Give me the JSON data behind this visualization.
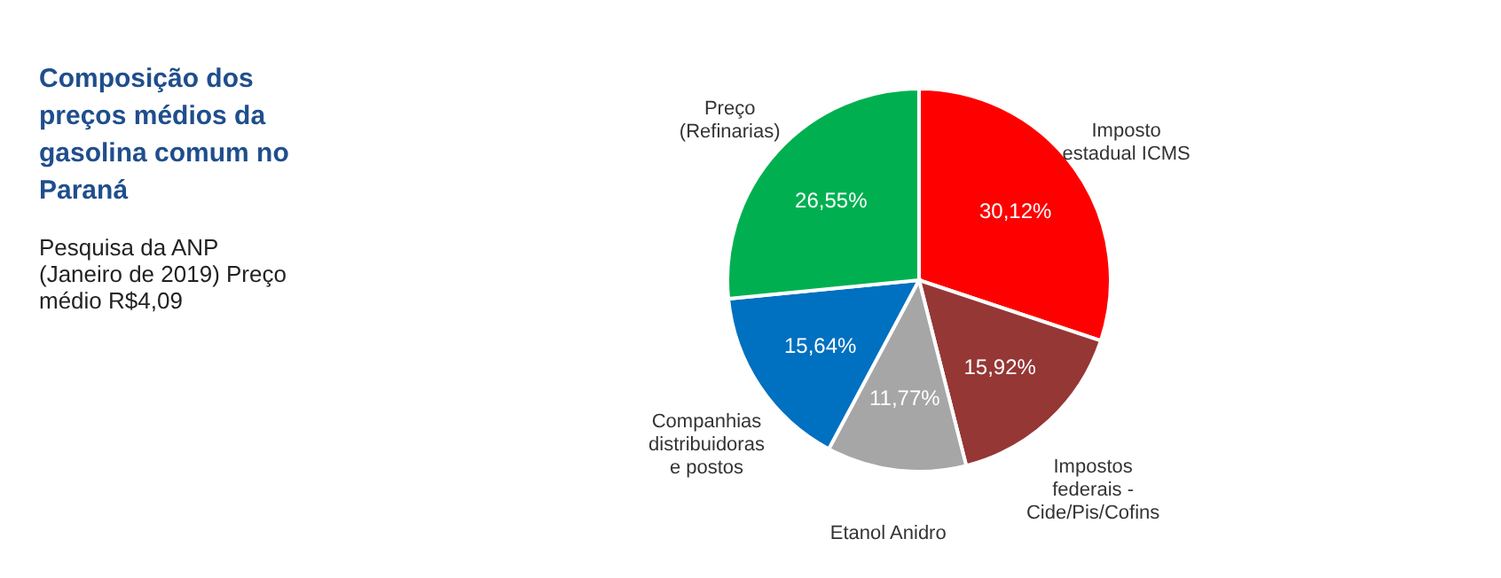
{
  "chart_data": {
    "type": "pie",
    "title": "Composição dos preços médios da gasolina comum no Paraná",
    "subtitle": "Pesquisa da ANP (Janeiro de 2019) Preço médio R$4,09",
    "categories": [
      "Imposto estadual ICMS",
      "Impostos federais - Cide/Pis/Cofins",
      "Etanol Anidro",
      "Companhias distribuidoras e postos",
      "Preço (Refinarias)"
    ],
    "values": [
      30.12,
      15.92,
      11.77,
      15.64,
      26.55
    ],
    "value_labels": [
      "30,12%",
      "15,92%",
      "11,77%",
      "15,64%",
      "26,55%"
    ],
    "colors": [
      "#ff0000",
      "#953735",
      "#a6a6a6",
      "#0070c0",
      "#00b050"
    ],
    "legend": false
  }
}
